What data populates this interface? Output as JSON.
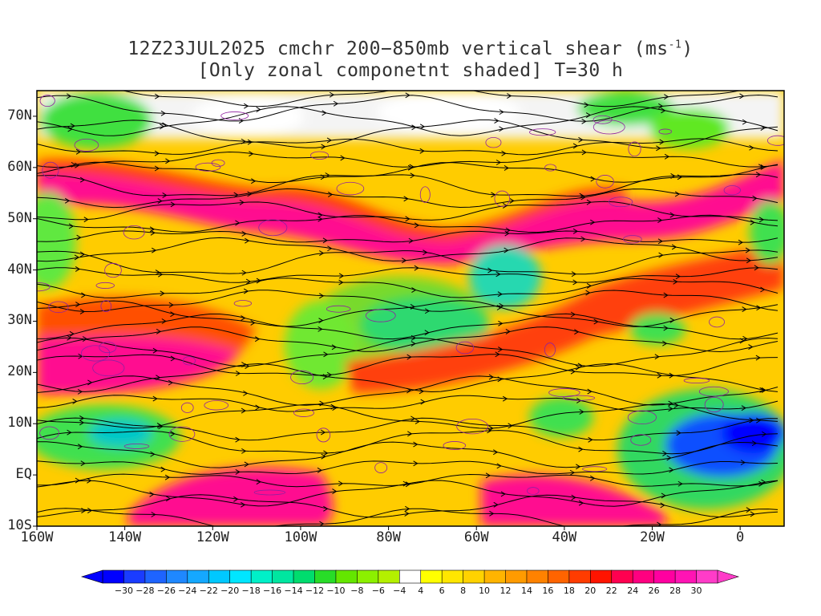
{
  "title_line1": "12Z23JUL2025 cmchr 200−850mb vertical shear (ms",
  "title_unit_sup": "-1",
  "title_line1_end": ")",
  "title_line2": "[Only zonal componetnt shaded] T=30 h",
  "map": {
    "lon_range": [
      -160,
      10
    ],
    "lat_range": [
      -10,
      75
    ],
    "lat_labels": [
      "70N",
      "60N",
      "50N",
      "40N",
      "30N",
      "20N",
      "10N",
      "EQ",
      "10S"
    ],
    "lat_values": [
      70,
      60,
      50,
      40,
      30,
      20,
      10,
      0,
      -10
    ],
    "lon_labels": [
      "160W",
      "140W",
      "120W",
      "100W",
      "80W",
      "60W",
      "40W",
      "20W",
      "0"
    ],
    "lon_values": [
      -160,
      -140,
      -120,
      -100,
      -80,
      -60,
      -40,
      -20,
      0
    ]
  },
  "colorbar": {
    "labels": [
      "-30",
      "-28",
      "-26",
      "-24",
      "-22",
      "-20",
      "-18",
      "-16",
      "-14",
      "-12",
      "-10",
      "-8",
      "-6",
      "-4",
      "4",
      "6",
      "8",
      "10",
      "12",
      "14",
      "16",
      "18",
      "20",
      "22",
      "24",
      "26",
      "28",
      "30"
    ],
    "colors": [
      "#0000ff",
      "#1a3cff",
      "#1e64ff",
      "#1f88ff",
      "#15a8ff",
      "#00c8ff",
      "#00e6ff",
      "#00f0c8",
      "#00e6a0",
      "#00dc6e",
      "#28dc28",
      "#64e600",
      "#8cf000",
      "#b4f000",
      "#ffffff",
      "#ffff00",
      "#ffe600",
      "#ffd200",
      "#ffb400",
      "#ff9b00",
      "#ff8200",
      "#ff6400",
      "#ff3c00",
      "#ff1400",
      "#ff0050",
      "#ff0080",
      "#ff00a0",
      "#ff14b4",
      "#ff3cc8"
    ]
  }
}
